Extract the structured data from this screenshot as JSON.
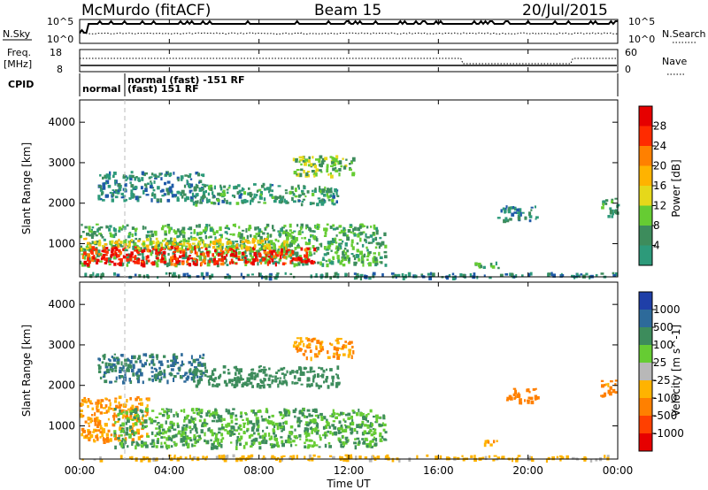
{
  "header": {
    "station": "McMurdo (fitACF)",
    "beam": "Beam 15",
    "date": "20/Jul/2015"
  },
  "top_panels": {
    "nsky_label": "N.Sky",
    "nsky_ticks": [
      "10^5",
      "10^0"
    ],
    "nsearch_label": "N.Search",
    "nsearch_ticks": [
      "10^5",
      "10^0"
    ],
    "freq_label": "Freq.",
    "freq_unit": "[MHz]",
    "freq_ticks": [
      "18",
      "8"
    ],
    "nave_label": "Nave",
    "nave_ticks": [
      "60",
      "0"
    ],
    "cpid_label": "CPID",
    "cpid_modes": [
      "normal",
      "normal (fast) -151 RF",
      "(fast) 151 RF"
    ]
  },
  "x_axis": {
    "label": "Time UT",
    "ticks": [
      "00:00",
      "04:00",
      "08:00",
      "12:00",
      "16:00",
      "20:00",
      "00:00"
    ]
  },
  "power_colorbar": {
    "label": "Power [dB]",
    "ticks": [
      "28",
      "24",
      "20",
      "16",
      "12",
      "8",
      "4"
    ],
    "colors": [
      "#e60000",
      "#ff2b00",
      "#ff8000",
      "#ffb300",
      "#e6d81a",
      "#66cc33",
      "#3d8c5c",
      "#2d9a7a",
      "#1f5aa8",
      "#0a28ff"
    ]
  },
  "velocity_colorbar": {
    "label": "Velocity [m s^-1]",
    "ticks": [
      "1000",
      "500",
      "100",
      "25",
      "-25",
      "-100",
      "-500",
      "-1000"
    ],
    "colors": [
      "#1f3fa8",
      "#2d6a9a",
      "#3d8c5c",
      "#66cc33",
      "#b8b8b8",
      "#ffb300",
      "#ff8000",
      "#ff4000",
      "#e60000"
    ]
  },
  "chart_data": [
    {
      "type": "heatmap",
      "title": "Power",
      "xlabel": "Time UT",
      "ylabel": "Slant Range [km]",
      "xlim": [
        0,
        24
      ],
      "ylim": [
        180,
        4550
      ],
      "yticks": [
        "1000",
        "2000",
        "3000",
        "4000"
      ],
      "zlabel": "Power [dB]",
      "zlim": [
        0,
        32
      ],
      "regions": [
        {
          "t0": 0.0,
          "t1": 13.6,
          "r0": 500,
          "r1": 1500,
          "value": 12
        },
        {
          "t0": 0.0,
          "t1": 10.5,
          "r0": 520,
          "r1": 960,
          "value": 28
        },
        {
          "t0": 0.0,
          "t1": 9.5,
          "r0": 900,
          "r1": 1150,
          "value": 18
        },
        {
          "t0": 0.8,
          "t1": 5.5,
          "r0": 2100,
          "r1": 2800,
          "value": 8
        },
        {
          "t0": 5.0,
          "t1": 11.5,
          "r0": 2000,
          "r1": 2500,
          "value": 10
        },
        {
          "t0": 9.5,
          "t1": 12.2,
          "r0": 2700,
          "r1": 3200,
          "value": 14
        },
        {
          "t0": 18.5,
          "t1": 20.4,
          "r0": 1600,
          "r1": 1950,
          "value": 8
        },
        {
          "t0": 23.2,
          "t1": 24.0,
          "r0": 1700,
          "r1": 2150,
          "value": 10
        },
        {
          "t0": 17.6,
          "t1": 18.8,
          "r0": 420,
          "r1": 560,
          "value": 12
        },
        {
          "t0": 0.0,
          "t1": 24.0,
          "r0": 190,
          "r1": 300,
          "value": 8
        }
      ]
    },
    {
      "type": "heatmap",
      "title": "Velocity",
      "xlabel": "Time UT",
      "ylabel": "Slant Range [km]",
      "xlim": [
        0,
        24
      ],
      "ylim": [
        180,
        4550
      ],
      "yticks": [
        "1000",
        "2000",
        "3000",
        "4000"
      ],
      "zlabel": "Velocity [m s^-1]",
      "zlim": [
        -1000,
        1000
      ],
      "regions": [
        {
          "t0": 0.0,
          "t1": 3.0,
          "r0": 650,
          "r1": 1750,
          "value": -100
        },
        {
          "t0": 1.5,
          "t1": 13.6,
          "r0": 500,
          "r1": 1450,
          "value": 100
        },
        {
          "t0": 0.8,
          "t1": 5.5,
          "r0": 2100,
          "r1": 2800,
          "value": 500
        },
        {
          "t0": 5.0,
          "t1": 11.5,
          "r0": 2000,
          "r1": 2500,
          "value": 300
        },
        {
          "t0": 9.5,
          "t1": 12.2,
          "r0": 2700,
          "r1": 3200,
          "value": -100
        },
        {
          "t0": 19.0,
          "t1": 20.4,
          "r0": 1600,
          "r1": 1950,
          "value": -300
        },
        {
          "t0": 23.2,
          "t1": 24.0,
          "r0": 1750,
          "r1": 2150,
          "value": -200
        },
        {
          "t0": 17.8,
          "t1": 18.6,
          "r0": 520,
          "r1": 680,
          "value": -100
        },
        {
          "t0": 0.0,
          "t1": 24.0,
          "r0": 190,
          "r1": 300,
          "value": -50
        }
      ]
    }
  ]
}
